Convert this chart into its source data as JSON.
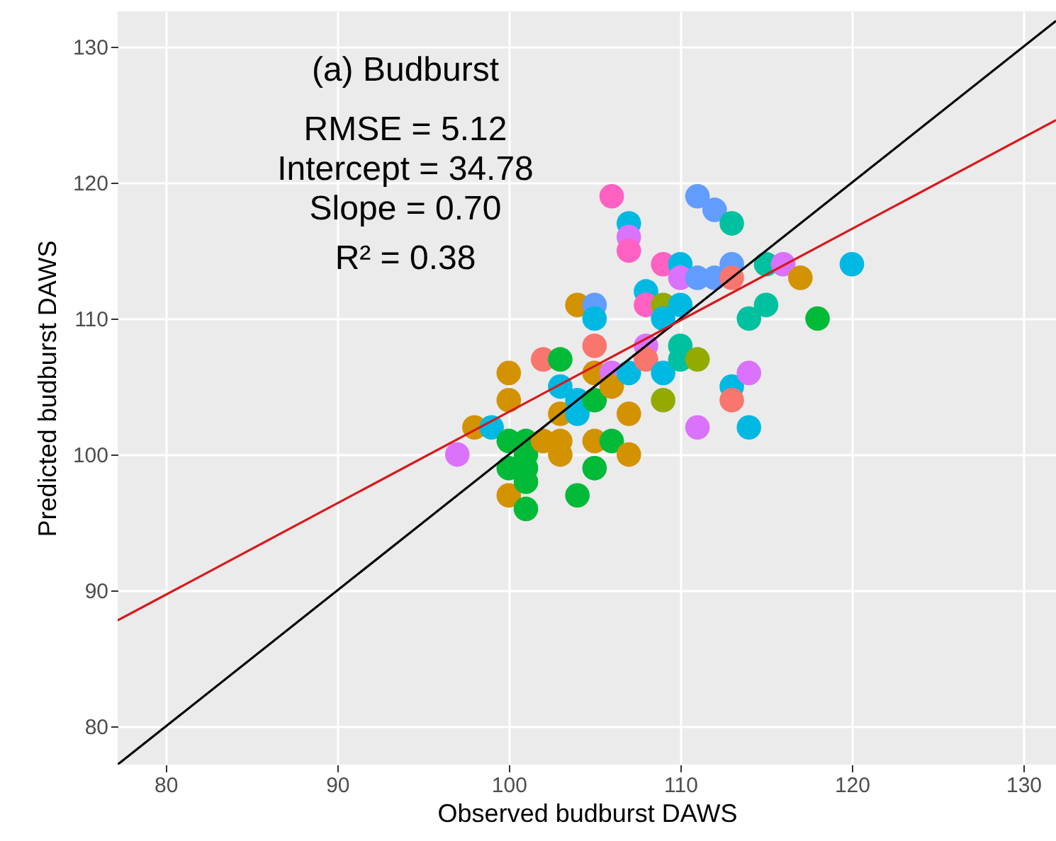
{
  "chart_data": {
    "type": "scatter",
    "xlabel": "Observed budburst DAWS",
    "ylabel": "Predicted budburst DAWS",
    "annotations": [
      "(a) Budburst",
      "RMSE = 5.12",
      "Intercept = 34.78",
      "Slope = 0.70",
      "R² = 0.38"
    ],
    "xlim": [
      77.2,
      131.9
    ],
    "ylim": [
      77.2,
      132.6
    ],
    "xticks": [
      80,
      90,
      100,
      110,
      120,
      130
    ],
    "yticks": [
      80,
      90,
      100,
      110,
      120,
      130
    ],
    "grid": true,
    "marker": "circle",
    "series": [
      {
        "x": [
          97,
          98,
          99,
          100,
          100,
          100,
          100,
          100,
          101,
          101,
          101,
          101,
          101,
          102,
          102,
          103,
          103,
          103,
          103,
          103,
          104,
          104,
          104,
          104,
          105,
          105,
          105,
          105,
          105,
          105,
          105,
          106,
          106,
          106,
          106,
          107,
          107,
          107,
          107,
          107,
          107,
          108,
          108,
          108,
          108,
          109,
          109,
          109,
          109,
          109,
          110,
          110,
          110,
          110,
          110,
          111,
          111,
          111,
          111,
          112,
          112,
          113,
          113,
          113,
          113,
          113,
          114,
          114,
          114,
          115,
          115,
          116,
          117,
          118,
          120
        ],
        "values": [
          100,
          102,
          102,
          106,
          104,
          101,
          99,
          97,
          101,
          100,
          99,
          98,
          96,
          107,
          101,
          107,
          105,
          103,
          101,
          100,
          111,
          104,
          103,
          97,
          111,
          110,
          108,
          106,
          104,
          101,
          99,
          119,
          106,
          105,
          101,
          117,
          116,
          115,
          103,
          100,
          106,
          112,
          111,
          108,
          107,
          114,
          111,
          110,
          106,
          104,
          114,
          113,
          111,
          108,
          107,
          119,
          113,
          107,
          102,
          118,
          113,
          117,
          114,
          113,
          105,
          104,
          110,
          106,
          102,
          114,
          111,
          114,
          113,
          110,
          114
        ],
        "colors": [
          "#DB72FB",
          "#D39200",
          "#00B9E3",
          "#D39200",
          "#D39200",
          "#00BA38",
          "#00BA38",
          "#D39200",
          "#00BA38",
          "#00BA38",
          "#00BA38",
          "#00BA38",
          "#00BA38",
          "#F8766D",
          "#D39200",
          "#00BA38",
          "#00B9E3",
          "#D39200",
          "#D39200",
          "#D39200",
          "#D39200",
          "#00B9E3",
          "#00B9E3",
          "#00BA38",
          "#619CFF",
          "#00B9E3",
          "#F8766D",
          "#D39200",
          "#00BA38",
          "#D39200",
          "#00BA38",
          "#FF61C3",
          "#DB72FB",
          "#D39200",
          "#00BA38",
          "#00B9E3",
          "#DB72FB",
          "#FF61C3",
          "#D39200",
          "#D39200",
          "#00B9E3",
          "#00B9E3",
          "#FF61C3",
          "#DB72FB",
          "#F8766D",
          "#FF61C3",
          "#93AA00",
          "#00B9E3",
          "#00B9E3",
          "#93AA00",
          "#00B9E3",
          "#DB72FB",
          "#00B9E3",
          "#00C19F",
          "#00C19F",
          "#619CFF",
          "#619CFF",
          "#93AA00",
          "#DB72FB",
          "#619CFF",
          "#619CFF",
          "#00C19F",
          "#619CFF",
          "#F8766D",
          "#00B9E3",
          "#F8766D",
          "#00C19F",
          "#DB72FB",
          "#00B9E3",
          "#00C19F",
          "#00C19F",
          "#DB72FB",
          "#D39200",
          "#00BA38",
          "#00B9E3"
        ]
      },
      {
        "type": "line",
        "marker": "none",
        "color": "#000000",
        "x": [
          77.2,
          131.9
        ],
        "values": [
          77.2,
          131.9
        ]
      },
      {
        "type": "line",
        "marker": "none",
        "color": "#D7191C",
        "x": [
          77.2,
          131.9
        ],
        "values": [
          87.8,
          124.6
        ]
      }
    ]
  }
}
